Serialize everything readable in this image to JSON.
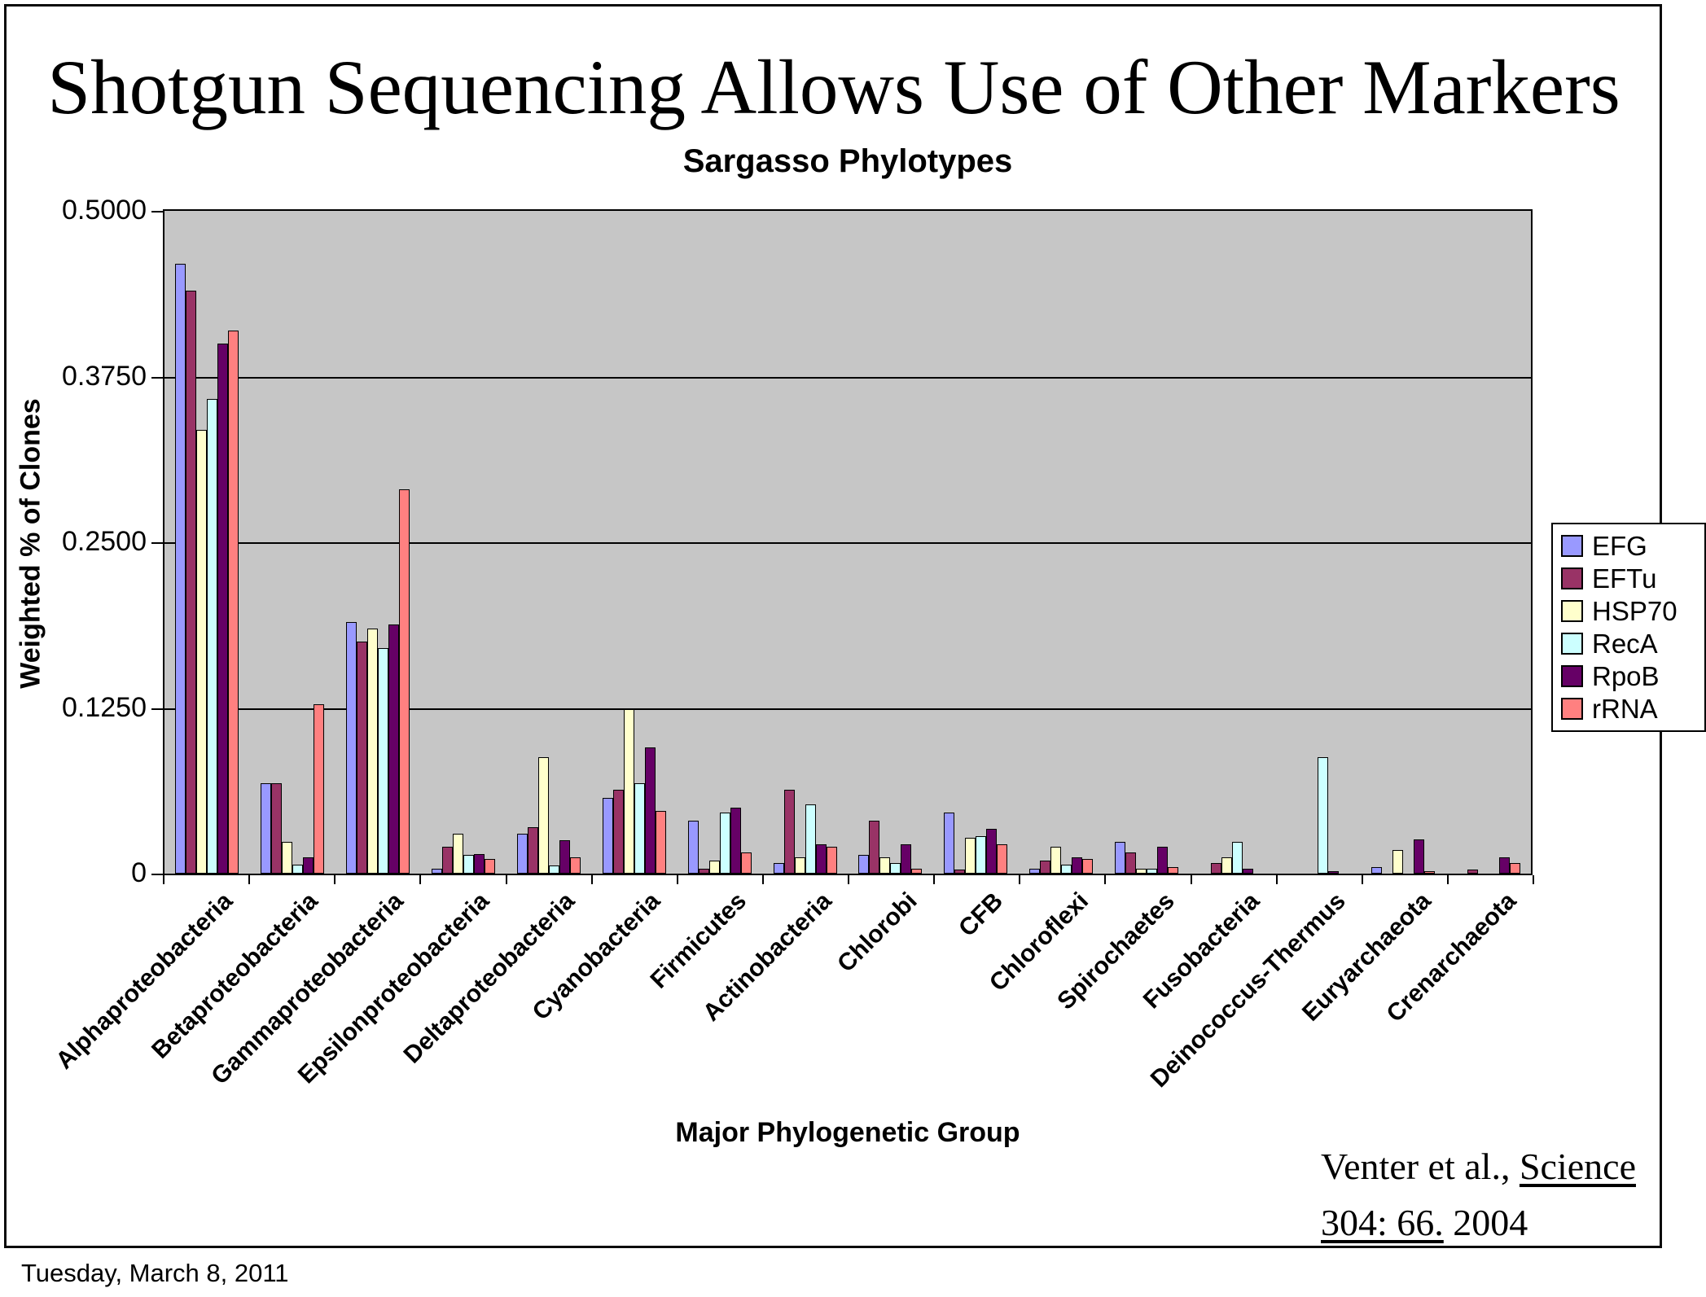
{
  "slide": {
    "title": "Shotgun Sequencing Allows Use of Other Markers",
    "date": "Tuesday, March 8, 2011",
    "citation": {
      "line1_text": "Venter et al., ",
      "line1_underline": "Science",
      "line2_underline": "304: 66.",
      "line2_text": " 2004"
    }
  },
  "chart_data": {
    "type": "bar",
    "title": "Sargasso Phylotypes",
    "xlabel": "Major Phylogenetic Group",
    "ylabel": "Weighted % of Clones",
    "ylim": [
      0,
      0.5
    ],
    "grid": true,
    "legend_position": "right",
    "plot_bg": "#c6c6c6",
    "gridline_color": "#000000",
    "yticks": [
      {
        "value": 0,
        "label": "0"
      },
      {
        "value": 0.125,
        "label": "0.1250"
      },
      {
        "value": 0.25,
        "label": "0.2500"
      },
      {
        "value": 0.375,
        "label": "0.3750"
      },
      {
        "value": 0.5,
        "label": "0.5000"
      }
    ],
    "categories": [
      "Alphaproteobacteria",
      "Betaproteobacteria",
      "Gammaproteobacteria",
      "Epsilonproteobacteria",
      "Deltaproteobacteria",
      "Cyanobacteria",
      "Firmicutes",
      "Actinobacteria",
      "Chlorobi",
      "CFB",
      "Chloroflexi",
      "Spirochaetes",
      "Fusobacteria",
      "Deinococcus-Thermus",
      "Euryarchaeota",
      "Crenarchaeota"
    ],
    "series": [
      {
        "name": "EFG",
        "color": "#9999FF",
        "values": [
          0.46,
          0.068,
          0.19,
          0.004,
          0.03,
          0.057,
          0.04,
          0.008,
          0.014,
          0.046,
          0.004,
          0.024,
          0.0,
          0.0,
          0.005,
          0.0
        ]
      },
      {
        "name": "EFTu",
        "color": "#993366",
        "values": [
          0.44,
          0.068,
          0.175,
          0.02,
          0.035,
          0.063,
          0.004,
          0.063,
          0.04,
          0.003,
          0.01,
          0.016,
          0.008,
          0.0,
          0.0,
          0.003
        ]
      },
      {
        "name": "HSP70",
        "color": "#FFFFCC",
        "values": [
          0.335,
          0.024,
          0.185,
          0.03,
          0.088,
          0.124,
          0.01,
          0.012,
          0.012,
          0.027,
          0.02,
          0.004,
          0.012,
          0.0,
          0.018,
          0.0
        ]
      },
      {
        "name": "RecA",
        "color": "#CCFFFF",
        "values": [
          0.358,
          0.007,
          0.17,
          0.014,
          0.006,
          0.068,
          0.046,
          0.052,
          0.008,
          0.028,
          0.007,
          0.004,
          0.024,
          0.088,
          0.0,
          0.0
        ]
      },
      {
        "name": "RpoB",
        "color": "#660066",
        "values": [
          0.4,
          0.012,
          0.188,
          0.015,
          0.025,
          0.095,
          0.05,
          0.022,
          0.022,
          0.034,
          0.012,
          0.02,
          0.004,
          0.002,
          0.026,
          0.012
        ]
      },
      {
        "name": "rRNA",
        "color": "#FF8080",
        "values": [
          0.41,
          0.128,
          0.29,
          0.011,
          0.012,
          0.047,
          0.016,
          0.02,
          0.004,
          0.022,
          0.011,
          0.005,
          0.0,
          0.0,
          0.002,
          0.008
        ]
      }
    ]
  }
}
